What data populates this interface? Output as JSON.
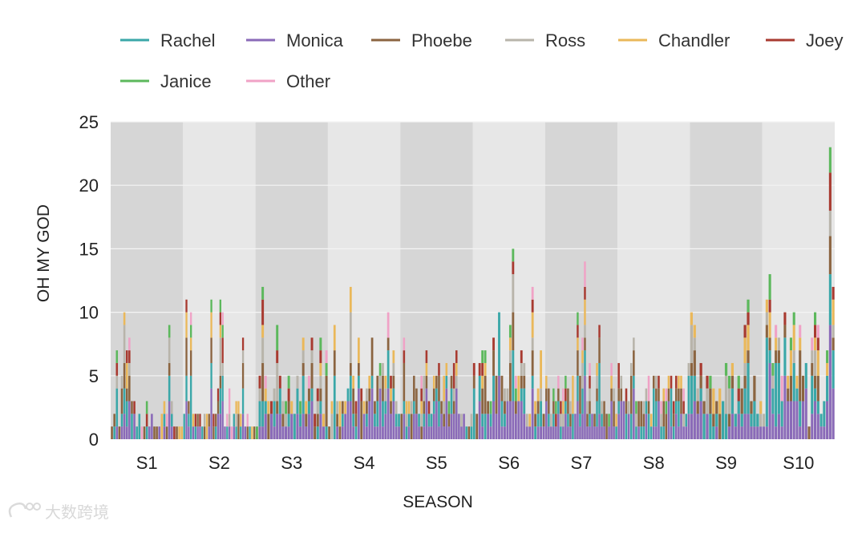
{
  "chart_data": {
    "type": "bar",
    "stacked": true,
    "xlabel": "SEASON",
    "ylabel": "OH MY GOD",
    "ylim": [
      0,
      25
    ],
    "yticks": [
      0,
      5,
      10,
      15,
      20,
      25
    ],
    "legend_position": "top",
    "colors": {
      "Rachel": "#3aa7a8",
      "Monica": "#8a6ab8",
      "Phoebe": "#8b6440",
      "Ross": "#b8b4aa",
      "Chandler": "#eab85a",
      "Joey": "#a83a30",
      "Janice": "#5cb85c",
      "Other": "#f0a2c6"
    },
    "season_band_colors": [
      "#d6d6d6",
      "#e7e7e7"
    ],
    "series_order": [
      "Monica",
      "Rachel",
      "Phoebe",
      "Ross",
      "Chandler",
      "Joey",
      "Janice",
      "Other"
    ],
    "seasons": [
      {
        "label": "S1",
        "totals": [
          1,
          2,
          7,
          1,
          5,
          10,
          7,
          8,
          3,
          3,
          1,
          2,
          1,
          1,
          3,
          1,
          2,
          1,
          1,
          1,
          2,
          3,
          2,
          9,
          3,
          1,
          1,
          1,
          1
        ]
      },
      {
        "label": "S2",
        "totals": [
          2,
          11,
          3,
          10,
          2,
          2,
          2,
          2,
          1,
          2,
          2,
          2,
          11,
          2,
          2,
          4,
          11,
          10,
          1,
          2,
          4,
          1,
          2,
          3,
          3,
          2,
          8,
          1,
          2,
          1,
          1,
          1
        ]
      },
      {
        "label": "S3",
        "totals": [
          1,
          5,
          12,
          5,
          3,
          3,
          4,
          9,
          5,
          3,
          3,
          5,
          3,
          2,
          5,
          3,
          8,
          3,
          5,
          8,
          2,
          4,
          8,
          2,
          7
        ]
      },
      {
        "label": "S4",
        "totals": [
          1,
          3,
          9,
          3,
          3,
          3,
          3,
          4,
          12,
          5,
          3,
          8,
          4,
          3,
          4,
          5,
          8,
          3,
          5,
          6,
          6,
          5,
          10,
          5,
          7,
          3,
          2
        ]
      },
      {
        "label": "S5",
        "totals": [
          2,
          8,
          3,
          3,
          3,
          5,
          4,
          2,
          5,
          5,
          7,
          3,
          2,
          5,
          5,
          6,
          3,
          5,
          6,
          3,
          5,
          6,
          7,
          2,
          2,
          2,
          1,
          1,
          2
        ]
      },
      {
        "label": "S6",
        "totals": [
          6,
          2,
          6,
          7,
          7,
          3,
          3,
          8,
          5,
          10,
          5,
          4,
          4,
          9,
          15,
          5,
          5,
          7,
          6,
          2,
          2,
          12,
          3,
          4,
          7,
          2
        ]
      },
      {
        "label": "S7",
        "totals": [
          5,
          4,
          2,
          4,
          3,
          5,
          3,
          4,
          5,
          4,
          3,
          5,
          2,
          10,
          5,
          8,
          14,
          3,
          6,
          2,
          2,
          6,
          9,
          3,
          3,
          2,
          2,
          6,
          4,
          2
        ]
      },
      {
        "label": "S8",
        "totals": [
          6,
          5,
          3,
          4,
          3,
          6,
          8,
          3,
          3,
          3,
          3,
          4,
          5,
          2,
          5,
          5,
          5,
          3,
          4,
          4,
          5,
          5,
          3,
          5,
          5,
          5,
          4,
          2,
          6
        ]
      },
      {
        "label": "S9",
        "totals": [
          10,
          9,
          4,
          6,
          3,
          5,
          5,
          4,
          3,
          4,
          3,
          6,
          5,
          6,
          2,
          5,
          4,
          9,
          11,
          3,
          5,
          2,
          3
        ]
      },
      {
        "label": "S10",
        "totals": [
          2,
          11,
          13,
          6,
          9,
          8,
          5,
          10,
          5,
          8,
          10,
          5,
          9,
          5,
          6,
          1,
          8,
          10,
          9,
          2,
          3,
          7,
          23,
          12
        ]
      }
    ]
  },
  "watermark": {
    "text": "大数跨境"
  }
}
